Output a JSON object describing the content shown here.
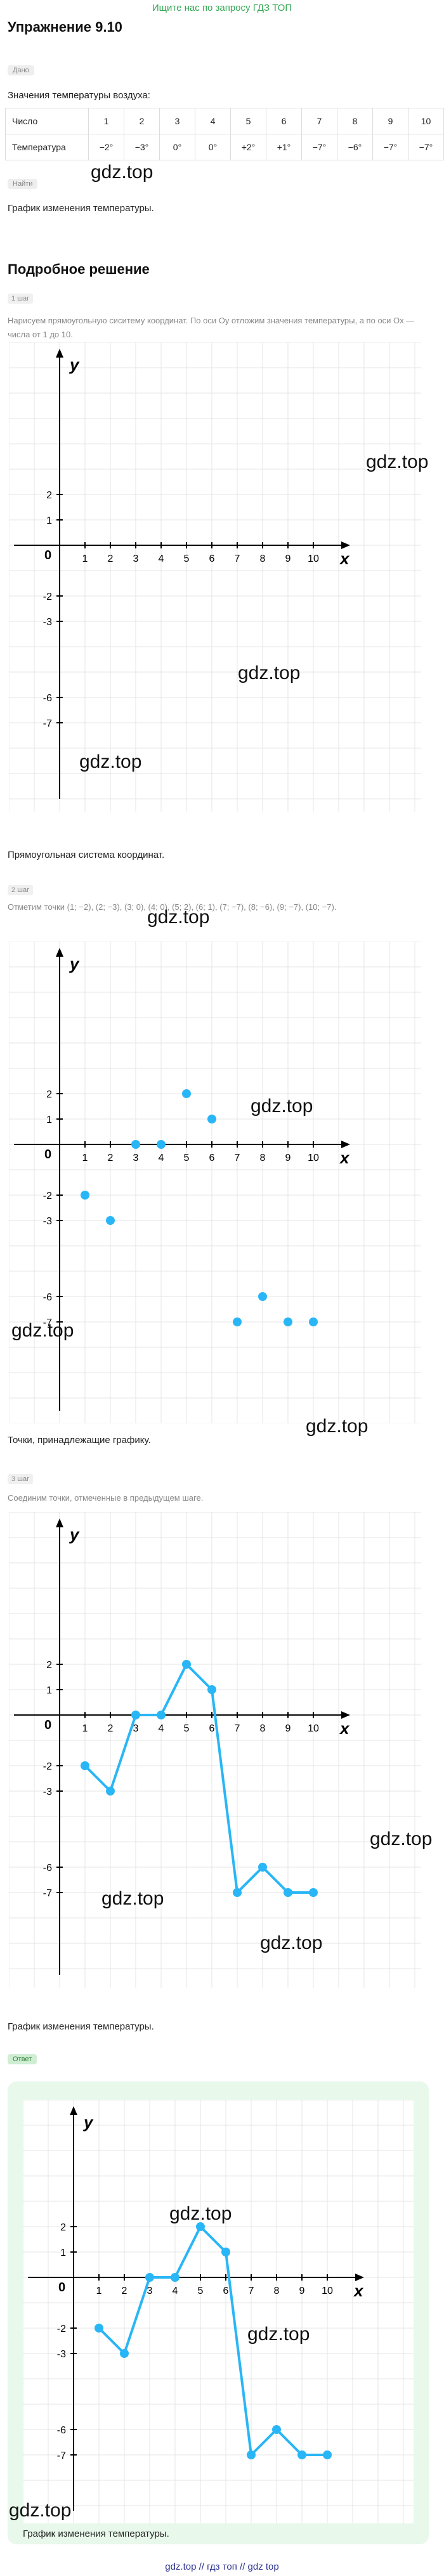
{
  "banner": "Ищите нас по запросу ГДЗ ТОП",
  "title": "Упражнение 9.10",
  "given_chip": "Дано",
  "given_text": "Значения температуры воздуха:",
  "table": {
    "row1_label": "Число",
    "row2_label": "Температура",
    "numbers": [
      "1",
      "2",
      "3",
      "4",
      "5",
      "6",
      "7",
      "8",
      "9",
      "10"
    ],
    "temps": [
      "−2°",
      "−3°",
      "0°",
      "0°",
      "+2°",
      "+1°",
      "−7°",
      "−6°",
      "−7°",
      "−7°"
    ]
  },
  "find_chip": "Найти",
  "find_text": "График изменения температуры.",
  "solution_title": "Подробное решение",
  "watermark": "gdz.top",
  "steps": [
    {
      "label": "1 шаг",
      "text": "Нарисуем прямоугольную сиситему координат. По оси Oy отложим значения температуры, а по оси Ox — числа от 1 до 10.",
      "caption": "Прямоугольная система координат."
    },
    {
      "label": "2 шаг",
      "text": "Отметим точки (1; −2), (2; −3), (3; 0), (4; 0), (5; 2), (6; 1), (7; −7), (8; −6), (9; −7), (10; −7).",
      "caption": "Точки, принадлежащие графику."
    },
    {
      "label": "3 шаг",
      "text": "Соединим точки, отмеченные в предыдущем шаге.",
      "caption": "График изменения температуры."
    }
  ],
  "answer_chip": "Ответ",
  "answer_caption": "График изменения температуры.",
  "footer": "gdz.top // гдз топ // gdz top",
  "colors": {
    "accent": "#29b6f6",
    "banner": "#34a853",
    "answer_bg": "#e8f8ea"
  },
  "chart_data": {
    "type": "line",
    "xlabel": "x",
    "ylabel": "y",
    "x_ticks": [
      1,
      2,
      3,
      4,
      5,
      6,
      7,
      8,
      9,
      10
    ],
    "y_ticks": [
      2,
      1,
      -2,
      -3,
      -6,
      -7
    ],
    "origin_label": "0",
    "points": [
      [
        1,
        -2
      ],
      [
        2,
        -3
      ],
      [
        3,
        0
      ],
      [
        4,
        0
      ],
      [
        5,
        2
      ],
      [
        6,
        1
      ],
      [
        7,
        -7
      ],
      [
        8,
        -6
      ],
      [
        9,
        -7
      ],
      [
        10,
        -7
      ]
    ],
    "grid": true
  }
}
